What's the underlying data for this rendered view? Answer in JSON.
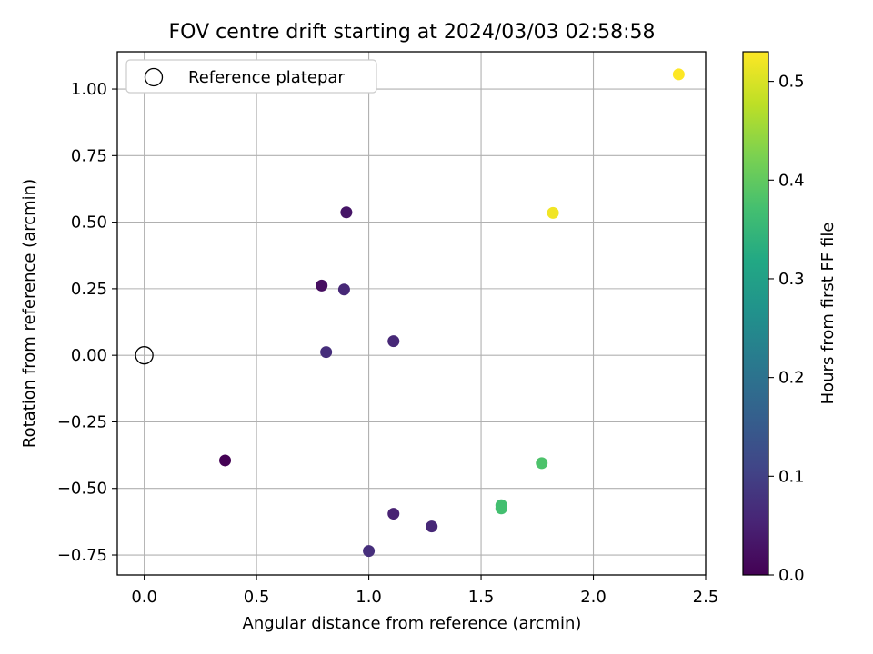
{
  "chart_data": {
    "type": "scatter",
    "title": "FOV centre drift starting at 2024/03/03 02:58:58",
    "xlabel": "Angular distance from reference (arcmin)",
    "ylabel": "Rotation from reference (arcmin)",
    "xlim": [
      -0.12,
      2.5
    ],
    "ylim": [
      -0.825,
      1.14
    ],
    "xticks": [
      0.0,
      0.5,
      1.0,
      1.5,
      2.0,
      2.5
    ],
    "xtick_labels": [
      "0.0",
      "0.5",
      "1.0",
      "1.5",
      "2.0",
      "2.5"
    ],
    "yticks": [
      -0.75,
      -0.5,
      -0.25,
      0.0,
      0.25,
      0.5,
      0.75,
      1.0
    ],
    "ytick_labels": [
      "−0.75",
      "−0.50",
      "−0.25",
      "0.00",
      "0.25",
      "0.50",
      "0.75",
      "1.00"
    ],
    "grid": true,
    "legend": {
      "placement": "upper-left",
      "entries": [
        {
          "label": "Reference platepar",
          "marker": "open-circle"
        }
      ]
    },
    "reference_point": {
      "x": 0.0,
      "y": 0.0
    },
    "colorbar": {
      "label": "Hours from first FF file",
      "colormap": "viridis",
      "range": [
        0.0,
        0.53
      ],
      "ticks": [
        0.0,
        0.1,
        0.2,
        0.3,
        0.4,
        0.5
      ],
      "tick_labels": [
        "0.0",
        "0.1",
        "0.2",
        "0.3",
        "0.4",
        "0.5"
      ]
    },
    "points": [
      {
        "x": 0.36,
        "y": -0.395,
        "hours": 0.0
      },
      {
        "x": 0.79,
        "y": 0.262,
        "hours": 0.02
      },
      {
        "x": 0.9,
        "y": 0.537,
        "hours": 0.03
      },
      {
        "x": 0.89,
        "y": 0.247,
        "hours": 0.06
      },
      {
        "x": 0.81,
        "y": 0.012,
        "hours": 0.07
      },
      {
        "x": 1.11,
        "y": 0.053,
        "hours": 0.06
      },
      {
        "x": 1.11,
        "y": -0.595,
        "hours": 0.05
      },
      {
        "x": 1.28,
        "y": -0.643,
        "hours": 0.06
      },
      {
        "x": 1.0,
        "y": -0.735,
        "hours": 0.07
      },
      {
        "x": 1.59,
        "y": -0.563,
        "hours": 0.37
      },
      {
        "x": 1.59,
        "y": -0.575,
        "hours": 0.37
      },
      {
        "x": 1.77,
        "y": -0.405,
        "hours": 0.38
      },
      {
        "x": 1.82,
        "y": 0.535,
        "hours": 0.52
      },
      {
        "x": 2.38,
        "y": 1.055,
        "hours": 0.53
      }
    ]
  }
}
